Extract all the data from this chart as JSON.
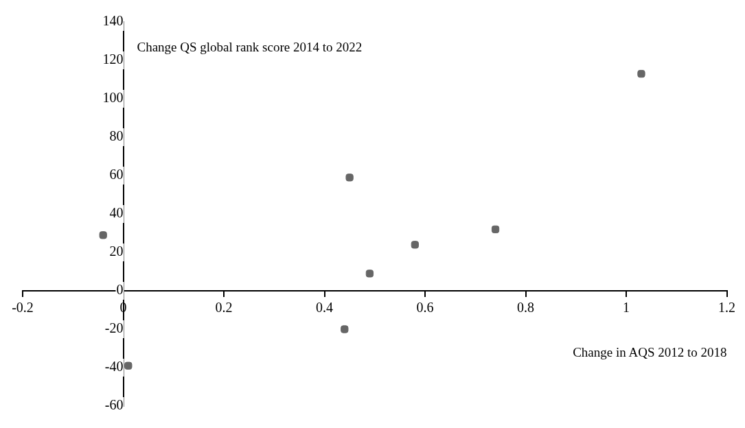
{
  "chart_data": {
    "type": "scatter",
    "xlabel": "Change in AQS 2012 to 2018",
    "ylabel": "Change QS global rank score 2014 to 2022",
    "x": [
      -0.04,
      0.01,
      0.44,
      0.45,
      0.49,
      0.58,
      0.74,
      1.03
    ],
    "series": [
      {
        "color": "#666666",
        "values": [
          29,
          -39,
          -20,
          59,
          9,
          24,
          32,
          113
        ]
      }
    ],
    "xlim": [
      -0.2,
      1.2
    ],
    "xticks": [
      -0.2,
      0,
      0.2,
      0.4,
      0.6,
      0.8,
      1,
      1.2
    ],
    "ylim": [
      -60,
      140
    ],
    "yticks": [
      -60,
      -40,
      -20,
      0,
      20,
      40,
      60,
      80,
      100,
      120,
      140
    ],
    "grid": false,
    "legend": false,
    "marker": "square"
  }
}
